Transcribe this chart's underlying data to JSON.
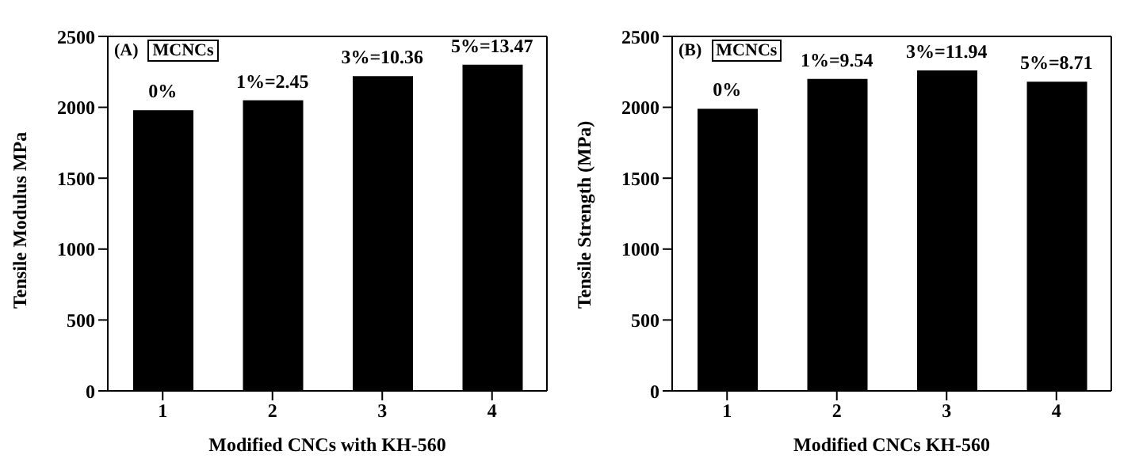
{
  "chart_data": [
    {
      "type": "bar",
      "categories": [
        "1",
        "2",
        "3",
        "4"
      ],
      "values": [
        1980,
        2050,
        2220,
        2300
      ],
      "color": "#000000",
      "xlabel": "Modified CNCs with KH-560",
      "ylabel": "Tensile Modulus MPa",
      "ylim": [
        0,
        2500
      ],
      "yticks": [
        0,
        500,
        1000,
        1500,
        2000,
        2500
      ],
      "grid": false,
      "legend": false,
      "annotations": [
        "(A)",
        "MCNCs",
        {
          "text": "0%",
          "x": "1",
          "y": 1980
        },
        {
          "text": "1%=2.45",
          "x": "2",
          "y": 2050
        },
        {
          "text": "3%=10.36",
          "x": "3",
          "y": 2220
        },
        {
          "text": "5%=13.47",
          "x": "4",
          "y": 2300
        }
      ]
    },
    {
      "type": "bar",
      "categories": [
        "1",
        "2",
        "3",
        "4"
      ],
      "values": [
        1990,
        2200,
        2260,
        2180
      ],
      "color": "#000000",
      "xlabel": "Modified CNCs KH-560",
      "ylabel": "Tensile Strength (MPa)",
      "ylim": [
        0,
        2500
      ],
      "yticks": [
        0,
        500,
        1000,
        1500,
        2000,
        2500
      ],
      "grid": false,
      "legend": false,
      "annotations": [
        "(B)",
        "MCNCs",
        {
          "text": "0%",
          "x": "1",
          "y": 1990
        },
        {
          "text": "1%=9.54",
          "x": "2",
          "y": 2200
        },
        {
          "text": "3%=11.94",
          "x": "3",
          "y": 2260
        },
        {
          "text": "5%=8.71",
          "x": "4",
          "y": 2180
        }
      ]
    }
  ]
}
